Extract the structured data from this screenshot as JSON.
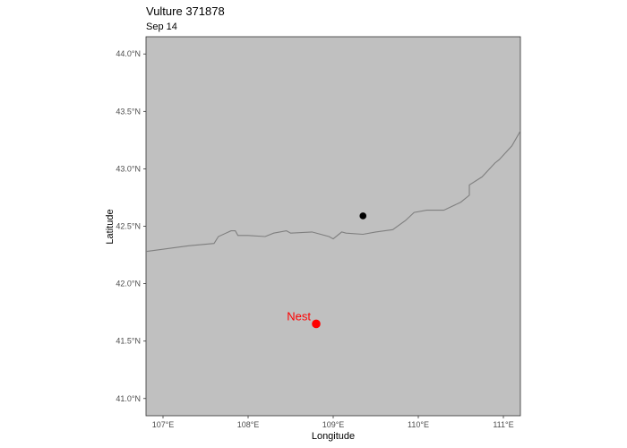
{
  "title": "Vulture 371878",
  "subtitle": "Sep 14",
  "x_axis_title": "Longitude",
  "y_axis_title": "Latitude",
  "panel_fill": "#c0c0c0",
  "border_color": "#7f7f7f",
  "nest_color": "#ff0000",
  "point_color": "#000000",
  "chart_data": {
    "type": "scatter",
    "xlim": [
      106.8,
      111.2
    ],
    "ylim": [
      40.85,
      44.15
    ],
    "x_ticks": [
      {
        "value": 107,
        "label": "107°E"
      },
      {
        "value": 108,
        "label": "108°E"
      },
      {
        "value": 109,
        "label": "109°E"
      },
      {
        "value": 110,
        "label": "110°E"
      },
      {
        "value": 111,
        "label": "111°E"
      }
    ],
    "y_ticks": [
      {
        "value": 41.0,
        "label": "41.0°N"
      },
      {
        "value": 41.5,
        "label": "41.5°N"
      },
      {
        "value": 42.0,
        "label": "42.0°N"
      },
      {
        "value": 42.5,
        "label": "42.5°N"
      },
      {
        "value": 43.0,
        "label": "43.0°N"
      },
      {
        "value": 43.5,
        "label": "43.5°N"
      },
      {
        "value": 44.0,
        "label": "44.0°N"
      }
    ],
    "border_line": [
      [
        106.8,
        42.28
      ],
      [
        107.3,
        42.33
      ],
      [
        107.6,
        42.35
      ],
      [
        107.65,
        42.41
      ],
      [
        107.8,
        42.46
      ],
      [
        107.85,
        42.46
      ],
      [
        107.88,
        42.42
      ],
      [
        108.0,
        42.42
      ],
      [
        108.2,
        42.41
      ],
      [
        108.3,
        42.44
      ],
      [
        108.45,
        42.46
      ],
      [
        108.5,
        42.44
      ],
      [
        108.75,
        42.45
      ],
      [
        108.95,
        42.41
      ],
      [
        109.0,
        42.39
      ],
      [
        109.1,
        42.45
      ],
      [
        109.15,
        42.44
      ],
      [
        109.35,
        42.43
      ],
      [
        109.5,
        42.45
      ],
      [
        109.7,
        42.47
      ],
      [
        109.85,
        42.55
      ],
      [
        109.95,
        42.62
      ],
      [
        110.1,
        42.64
      ],
      [
        110.3,
        42.64
      ],
      [
        110.5,
        42.71
      ],
      [
        110.6,
        42.77
      ],
      [
        110.6,
        42.86
      ],
      [
        110.75,
        42.93
      ],
      [
        110.9,
        43.05
      ],
      [
        110.95,
        43.08
      ],
      [
        111.1,
        43.2
      ],
      [
        111.2,
        43.33
      ],
      [
        111.35,
        43.39
      ]
    ],
    "points": [
      {
        "lon": 109.35,
        "lat": 42.59,
        "label": ""
      },
      {
        "lon": 108.8,
        "lat": 41.65,
        "label": "Nest"
      }
    ]
  }
}
